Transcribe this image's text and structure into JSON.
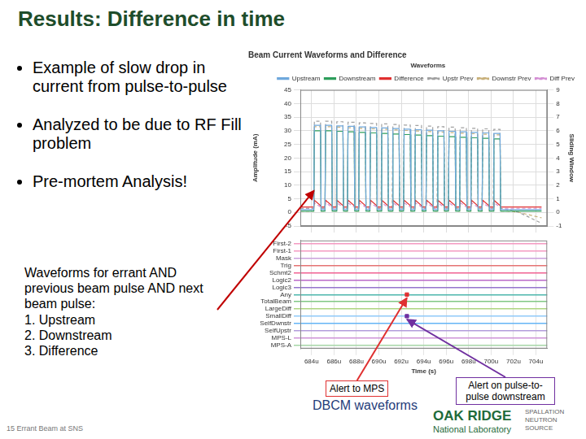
{
  "slide": {
    "title": "Results: Difference in time",
    "bullets": [
      "Example of slow drop in current from pulse-to-pulse",
      "Analyzed to be due to RF Fill problem",
      "Pre-mortem Analysis!"
    ],
    "note": {
      "text": "Waveforms for errant AND previous beam pulse AND next beam pulse:",
      "items": [
        "1. Upstream",
        "2. Downstream",
        "3. Difference"
      ],
      "color": "#c00000",
      "target": {
        "x": 684.22,
        "y": 8
      }
    },
    "caption": "DBCM waveforms",
    "footer": {
      "page": "15",
      "text": "Errant Beam at SNS"
    },
    "logo": {
      "name": [
        "OAK RIDGE",
        "National Laboratory"
      ],
      "program": [
        "SPALLATION",
        "NEUTRON",
        "SOURCE"
      ]
    }
  },
  "chart_data": [
    {
      "type": "line",
      "title": "Beam Current Waveforms and Difference",
      "y_label": "Amplitude (mA)",
      "y2_label": "Sliding Window",
      "legend": "top-right",
      "legend_title": "Waveforms",
      "grid": true,
      "tick_labels": "y",
      "xlim": [
        683,
        705
      ],
      "xticks": [
        684,
        686,
        688,
        690,
        692,
        694,
        696,
        698,
        700,
        702,
        704
      ],
      "ylim": [
        -5,
        45
      ],
      "yticks": [
        -5,
        0,
        5,
        10,
        15,
        20,
        25,
        30,
        35,
        40,
        45
      ],
      "y2lim": [
        -1,
        9
      ],
      "y2ticks": [
        -1,
        0,
        1,
        2,
        3,
        4,
        5,
        6,
        7,
        8,
        9
      ],
      "x": [
        683,
        684.2,
        684.25,
        684.8,
        684.85,
        685.2,
        685.25,
        685.8,
        685.85,
        686.2,
        686.25,
        686.8,
        686.85,
        687.2,
        687.25,
        687.8,
        687.85,
        688.2,
        688.25,
        688.8,
        688.85,
        689.2,
        689.25,
        689.8,
        689.85,
        690.2,
        690.25,
        690.8,
        690.85,
        691.2,
        691.25,
        691.8,
        691.85,
        692.2,
        692.25,
        692.8,
        692.85,
        693.2,
        693.25,
        693.8,
        693.85,
        694.2,
        694.25,
        694.8,
        694.85,
        695.2,
        695.25,
        695.8,
        695.85,
        696.2,
        696.25,
        696.8,
        696.85,
        697.2,
        697.25,
        697.8,
        697.85,
        698.2,
        698.25,
        698.8,
        698.85,
        699.2,
        699.25,
        699.8,
        699.85,
        700.2,
        700.25,
        700.8,
        700.85,
        701.5,
        702.5,
        703.5,
        704.5
      ],
      "series": [
        {
          "name": "Upstream",
          "color": "#6fa8dc",
          "line_style": "solid",
          "values": [
            1,
            1,
            32,
            32,
            1,
            1,
            32,
            32,
            1,
            1,
            31.8,
            31.8,
            1,
            1,
            31.6,
            31.6,
            1,
            1,
            31.4,
            31.4,
            1,
            1,
            31.2,
            31.2,
            1,
            1,
            31,
            31,
            1,
            1,
            30.8,
            30.8,
            1,
            1,
            30.6,
            30.6,
            1,
            1,
            30.4,
            30.4,
            1,
            1,
            30.2,
            30.2,
            1,
            1,
            30,
            30,
            1,
            1,
            29.8,
            29.8,
            1,
            1,
            29.6,
            29.6,
            1,
            1,
            29.4,
            29.4,
            1,
            1,
            29.2,
            29.2,
            1,
            1,
            29,
            29,
            1,
            1,
            1,
            1,
            1
          ]
        },
        {
          "name": "Downstream",
          "color": "#2e9e5b",
          "line_style": "solid",
          "values": [
            0.5,
            0.5,
            30,
            30,
            0.5,
            0.5,
            30,
            30,
            0.5,
            0.5,
            29.8,
            29.8,
            0.5,
            0.5,
            29.6,
            29.6,
            0.5,
            0.5,
            29.4,
            29.4,
            0.5,
            0.5,
            29.2,
            29.2,
            0.5,
            0.5,
            29,
            29,
            0.5,
            0.5,
            28.8,
            28.8,
            0.5,
            0.5,
            28.6,
            28.6,
            0.5,
            0.5,
            28.4,
            28.4,
            0.5,
            0.5,
            28.2,
            28.2,
            0.5,
            0.5,
            28,
            28,
            0.5,
            0.5,
            27.8,
            27.8,
            0.5,
            0.5,
            27.6,
            27.6,
            0.5,
            0.5,
            27.4,
            27.4,
            0.5,
            0.5,
            27.2,
            27.2,
            0.5,
            0.5,
            27,
            27,
            0.5,
            0.5,
            0.5,
            0.5,
            0.5
          ]
        },
        {
          "name": "Difference",
          "color": "#e03030",
          "line_style": "solid",
          "axis": "y2",
          "values": [
            0.4,
            0.4,
            0.9,
            0.5,
            0.4,
            0.4,
            0.9,
            0.5,
            0.4,
            0.4,
            0.9,
            0.5,
            0.4,
            0.4,
            0.9,
            0.5,
            0.4,
            0.4,
            0.9,
            0.5,
            0.4,
            0.4,
            0.9,
            0.5,
            0.4,
            0.4,
            0.9,
            0.5,
            0.4,
            0.4,
            0.9,
            0.5,
            0.4,
            0.4,
            0.9,
            0.5,
            0.4,
            0.4,
            0.9,
            0.5,
            0.4,
            0.4,
            0.9,
            0.5,
            0.4,
            0.4,
            0.9,
            0.5,
            0.4,
            0.4,
            0.9,
            0.5,
            0.4,
            0.4,
            0.9,
            0.5,
            0.4,
            0.4,
            0.9,
            0.5,
            0.4,
            0.4,
            0.9,
            0.5,
            0.4,
            0.4,
            0.9,
            0.5,
            0.4,
            0.4,
            0.4,
            0.4,
            0.4
          ]
        },
        {
          "name": "Upstr Prev",
          "color": "#a0a0a0",
          "line_style": "dashed",
          "values": [
            1.5,
            1.5,
            33.5,
            33.5,
            1.5,
            1.5,
            33.5,
            33.5,
            1.5,
            1.5,
            33.3,
            33.3,
            1.5,
            1.5,
            33.1,
            33.1,
            1.5,
            1.5,
            32.9,
            32.9,
            1.5,
            1.5,
            32.7,
            32.7,
            1.5,
            1.5,
            32.5,
            32.5,
            1.5,
            1.5,
            32.3,
            32.3,
            1.5,
            1.5,
            32.1,
            32.1,
            1.5,
            1.5,
            31.9,
            31.9,
            1.5,
            1.5,
            31.7,
            31.7,
            1.5,
            1.5,
            31.5,
            31.5,
            1.5,
            1.5,
            31.3,
            31.3,
            1.5,
            1.5,
            31.1,
            31.1,
            1.5,
            1.5,
            30.9,
            30.9,
            1.5,
            1.5,
            30.7,
            30.7,
            1.5,
            1.5,
            30.5,
            30.5,
            1.5,
            1,
            0,
            -2,
            -4
          ]
        },
        {
          "name": "Downstr Prev",
          "color": "#c8b07a",
          "line_style": "dashed",
          "values": [
            0.5,
            0.5,
            31.5,
            31.5,
            0.5,
            0.5,
            31.5,
            31.5,
            0.5,
            0.5,
            31.3,
            31.3,
            0.5,
            0.5,
            31.1,
            31.1,
            0.5,
            0.5,
            30.9,
            30.9,
            0.5,
            0.5,
            30.7,
            30.7,
            0.5,
            0.5,
            30.5,
            30.5,
            0.5,
            0.5,
            30.3,
            30.3,
            0.5,
            0.5,
            30.1,
            30.1,
            0.5,
            0.5,
            29.9,
            29.9,
            0.5,
            0.5,
            29.7,
            29.7,
            0.5,
            0.5,
            29.5,
            29.5,
            0.5,
            0.5,
            29.3,
            29.3,
            0.5,
            0.5,
            29.1,
            29.1,
            0.5,
            0.5,
            28.9,
            28.9,
            0.5,
            0.5,
            28.7,
            28.7,
            0.5,
            0.5,
            28.5,
            28.5,
            0.5,
            0.5,
            0,
            -1,
            -2
          ]
        },
        {
          "name": "Diff Prev",
          "color": "#d48fd4",
          "line_style": "dashed",
          "axis": "y2",
          "values": [
            0.3,
            0.3,
            0.7,
            0.4,
            0.3,
            0.3,
            0.7,
            0.4,
            0.3,
            0.3,
            0.7,
            0.4,
            0.3,
            0.3,
            0.7,
            0.4,
            0.3,
            0.3,
            0.7,
            0.4,
            0.3,
            0.3,
            0.7,
            0.4,
            0.3,
            0.3,
            0.7,
            0.4,
            0.3,
            0.3,
            0.7,
            0.4,
            0.3,
            0.3,
            0.7,
            0.4,
            0.3,
            0.3,
            0.7,
            0.4,
            0.3,
            0.3,
            0.7,
            0.4,
            0.3,
            0.3,
            0.7,
            0.4,
            0.3,
            0.3,
            0.7,
            0.4,
            0.3,
            0.3,
            0.7,
            0.4,
            0.3,
            0.3,
            0.7,
            0.4,
            0.3,
            0.3,
            0.7,
            0.4,
            0.3,
            0.3,
            0.7,
            0.4,
            0.3,
            0.3,
            0.3,
            0.3,
            0.3
          ]
        }
      ]
    },
    {
      "type": "scatter",
      "x_label": "Time (s)",
      "grid": true,
      "xlim": [
        683,
        705
      ],
      "xticks": [
        {
          "value": 684,
          "label": "684u"
        },
        {
          "value": 686,
          "label": "686u"
        },
        {
          "value": 688,
          "label": "688u"
        },
        {
          "value": 690,
          "label": "690u"
        },
        {
          "value": 692,
          "label": "692u"
        },
        {
          "value": 694,
          "label": "694u"
        },
        {
          "value": 696,
          "label": "696u"
        },
        {
          "value": 698,
          "label": "698u"
        },
        {
          "value": 700,
          "label": "700u"
        },
        {
          "value": 702,
          "label": "702u"
        },
        {
          "value": 704,
          "label": "704u"
        }
      ],
      "ylim": [
        -0.5,
        14.5
      ],
      "yticks": [
        {
          "value": 0,
          "label": "First-2"
        },
        {
          "value": 1,
          "label": "First-1"
        },
        {
          "value": 2,
          "label": "Mask"
        },
        {
          "value": 3,
          "label": "Trig"
        },
        {
          "value": 4,
          "label": "Schmt2"
        },
        {
          "value": 5,
          "label": "Logic2"
        },
        {
          "value": 6,
          "label": "Logic3"
        },
        {
          "value": 7,
          "label": "Any"
        },
        {
          "value": 8,
          "label": "TotalBeam"
        },
        {
          "value": 9,
          "label": "LargeDiff"
        },
        {
          "value": 10,
          "label": "SmallDiff"
        },
        {
          "value": 11,
          "label": "SelfDwnstr"
        },
        {
          "value": 12,
          "label": "SelfUpstr"
        },
        {
          "value": 13,
          "label": "MPS-L"
        },
        {
          "value": 14,
          "label": "MPS-A"
        }
      ],
      "colors": [
        "#f49ac1",
        "#f49ac1",
        "#c9a0dc",
        "#e57373",
        "#f06292",
        "#ba68c8",
        "#9575cd",
        "#4db6ac",
        "#81c784",
        "#aed581",
        "#90caf9",
        "#64b5f6",
        "#b39ddb",
        "#ce93d8",
        "#a5d6a7"
      ],
      "annotations": [
        {
          "text": "Alert to MPS",
          "x": 692.5,
          "y": 7,
          "color": "#e03030"
        },
        {
          "text": "Alert on pulse-to-pulse downstream",
          "x": 692.5,
          "y": 10,
          "color": "#7030a0"
        }
      ]
    }
  ]
}
